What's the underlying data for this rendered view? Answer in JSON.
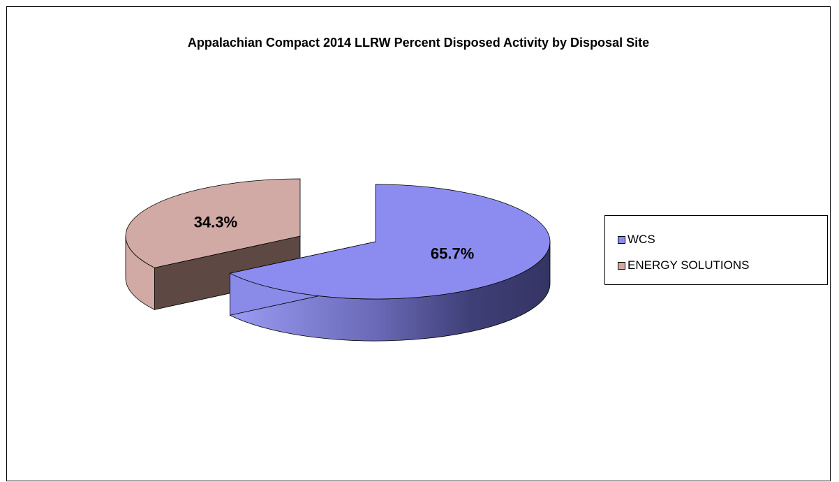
{
  "chart_data": {
    "type": "pie",
    "title": "Appalachian Compact 2014 LLRW Percent Disposed Activity by Disposal Site",
    "categories": [
      "WCS",
      "ENERGY SOLUTIONS"
    ],
    "values": [
      65.7,
      34.3
    ],
    "data_labels": [
      "65.7%",
      "34.3%"
    ],
    "colors": [
      "#8c8cf0",
      "#d2aaa5"
    ],
    "side_colors": [
      "#3a3a6c",
      "#5e4843"
    ],
    "style": "3d-exploded",
    "legend": "right"
  }
}
